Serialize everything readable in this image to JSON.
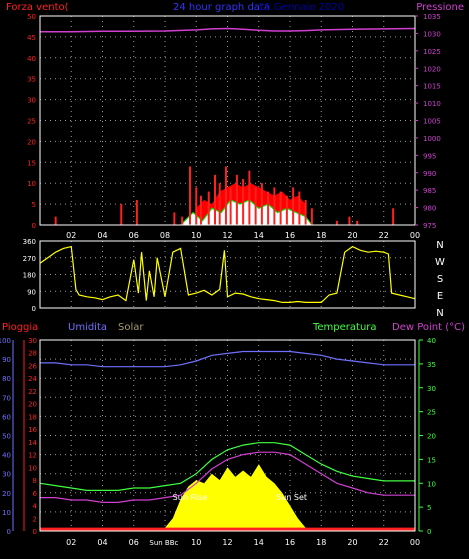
{
  "colors": {
    "background": "#000000",
    "frame": "#ffffff",
    "grid": "#9a9a9a",
    "wind": "#ff2020",
    "gust_area": "#ff0000",
    "wind_avg": "#00dd00",
    "wind_fill": "#ffffff",
    "pressure": "#d040d0",
    "direction": "#ffff00",
    "rain": "#ff2020",
    "humidity": "#7070ff",
    "solar": "#ffff00",
    "temperature": "#40ff40",
    "dewpoint": "#d040d0",
    "title": "#3333ff",
    "date": "#0000aa"
  },
  "header": {
    "left_label": "Forza vento(",
    "center_label": "24 hour graph data",
    "date_label": "15 Gennaio 2020",
    "right_label": "Pressione"
  },
  "mid_labels": {
    "rain": "Pioggia",
    "humidity": "Umidita",
    "solar": "Solar",
    "temperature": "Temperatura",
    "dewpoint": "Dew Point (°C)"
  },
  "compass_labels": [
    "N",
    "W",
    "S",
    "E",
    "N"
  ],
  "annotations": {
    "sun_rise": "Sun Rise",
    "sun_set": "Sun Set",
    "sun_bottom": "Sun BBc"
  },
  "x_ticks": [
    "02",
    "04",
    "06",
    "08",
    "10",
    "12",
    "14",
    "16",
    "18",
    "20",
    "22",
    "00"
  ],
  "chart_data": [
    {
      "id": "wind_pressure",
      "type": "line",
      "x_unit": "hour",
      "xlim": [
        0,
        24
      ],
      "left_axis": {
        "label": "Forza vento(",
        "range": [
          0,
          50
        ],
        "ticks": [
          0,
          5,
          10,
          15,
          20,
          25,
          30,
          35,
          40,
          45,
          50
        ]
      },
      "right_axis": {
        "label": "Pressione",
        "range": [
          975,
          1035
        ],
        "ticks": [
          975,
          980,
          985,
          990,
          995,
          1000,
          1005,
          1010,
          1015,
          1020,
          1025,
          1030,
          1035
        ]
      },
      "series": [
        {
          "name": "Pressione",
          "axis": "right",
          "x": [
            0,
            2,
            4,
            6,
            8,
            10,
            11,
            12,
            13,
            14,
            15,
            16,
            17,
            18,
            20,
            22,
            24
          ],
          "y": [
            1030.5,
            1030.5,
            1030.6,
            1030.6,
            1030.7,
            1031.0,
            1031.3,
            1031.4,
            1031.2,
            1030.9,
            1030.7,
            1030.7,
            1030.8,
            1031.0,
            1031.2,
            1031.3,
            1031.4
          ]
        },
        {
          "name": "Forza vento(",
          "axis": "left",
          "style": "spikes",
          "x": [
            1,
            5.2,
            6.2,
            8.6,
            9.1,
            9.6,
            10.0,
            10.3,
            10.8,
            11.2,
            11.5,
            11.9,
            12.2,
            12.6,
            13.0,
            13.4,
            13.8,
            14.2,
            14.6,
            15.0,
            15.4,
            15.8,
            16.2,
            16.6,
            17.0,
            17.4,
            19.0,
            19.8,
            20.3,
            22.6
          ],
          "y": [
            2,
            5,
            6,
            3,
            2,
            14,
            9,
            7,
            8,
            12,
            10,
            14,
            9,
            12,
            11,
            13,
            9,
            10,
            8,
            9,
            8,
            7,
            9,
            8,
            6,
            4,
            1,
            2,
            1,
            4
          ]
        },
        {
          "name": "gust",
          "axis": "left",
          "style": "area",
          "x": [
            10.0,
            10.5,
            11.0,
            11.5,
            12.0,
            12.5,
            13.0,
            13.5,
            14.0,
            14.5,
            15.0,
            15.5,
            16.0,
            16.5,
            17.0
          ],
          "y": [
            4,
            6,
            5,
            8,
            9,
            10,
            9,
            10,
            9,
            8,
            7,
            8,
            6,
            7,
            5
          ]
        },
        {
          "name": "average",
          "axis": "left",
          "x": [
            9.0,
            9.8,
            10.4,
            11.0,
            11.6,
            12.2,
            12.8,
            13.4,
            14.0,
            14.6,
            15.2,
            15.8,
            16.4,
            17.0,
            17.4
          ],
          "y": [
            0,
            3,
            1,
            4,
            3,
            6,
            5,
            6,
            4,
            5,
            3,
            4,
            3,
            2,
            0
          ]
        }
      ]
    },
    {
      "id": "wind_direction",
      "type": "scatter",
      "x_unit": "hour",
      "xlim": [
        0,
        24
      ],
      "ylim": [
        0,
        360
      ],
      "y_ticks": [
        0,
        90,
        180,
        270,
        360
      ],
      "series": [
        {
          "name": "direction",
          "x": [
            0.0,
            0.5,
            1.0,
            1.5,
            2.0,
            2.3,
            2.5,
            3.0,
            3.5,
            4.0,
            4.5,
            5.0,
            5.5,
            6.0,
            6.3,
            6.5,
            6.8,
            7.0,
            7.3,
            7.5,
            8.0,
            8.5,
            9.0,
            9.5,
            10.0,
            10.5,
            11.0,
            11.5,
            11.8,
            12.0,
            12.5,
            13.0,
            13.5,
            14.0,
            14.5,
            15.0,
            15.5,
            16.0,
            16.5,
            17.0,
            17.5,
            18.0,
            18.5,
            19.0,
            19.5,
            20.0,
            20.5,
            21.0,
            21.5,
            22.0,
            22.3,
            22.5,
            23.0,
            23.5,
            24.0
          ],
          "y": [
            240,
            270,
            300,
            320,
            330,
            100,
            70,
            60,
            55,
            45,
            60,
            70,
            40,
            260,
            80,
            300,
            40,
            200,
            60,
            270,
            60,
            300,
            320,
            70,
            80,
            95,
            70,
            100,
            310,
            60,
            80,
            75,
            60,
            50,
            45,
            40,
            30,
            30,
            35,
            30,
            30,
            30,
            70,
            80,
            300,
            330,
            310,
            300,
            305,
            300,
            290,
            80,
            70,
            60,
            50
          ]
        }
      ]
    },
    {
      "id": "rain_humidity_solar_temp",
      "type": "line",
      "x_unit": "hour",
      "xlim": [
        0,
        24
      ],
      "left_axis": {
        "label": "Pioggia",
        "range": [
          0,
          100
        ],
        "ticks": [
          0,
          10,
          20,
          30,
          40,
          50,
          60,
          70,
          80,
          90,
          100
        ]
      },
      "inner_left_axis": {
        "label": "Umidita",
        "range": [
          0,
          30
        ],
        "ticks": [
          0,
          2,
          4,
          6,
          8,
          10,
          12,
          14,
          16,
          18,
          20,
          22,
          24,
          26,
          28,
          30
        ]
      },
      "right_axis": {
        "label": "Temperatura",
        "range": [
          0,
          40
        ],
        "ticks": [
          0,
          5,
          10,
          15,
          20,
          25,
          30,
          35,
          40
        ]
      },
      "series": [
        {
          "name": "Umidita",
          "axis": "left",
          "x": [
            0,
            1,
            2,
            3,
            4,
            5,
            6,
            7,
            8,
            9,
            10,
            11,
            12,
            13,
            14,
            15,
            16,
            17,
            18,
            19,
            20,
            21,
            22,
            23,
            24
          ],
          "y": [
            88,
            88,
            87,
            87,
            86,
            86,
            86,
            86,
            86,
            87,
            89,
            92,
            93,
            94,
            94,
            94,
            94,
            93,
            92,
            90,
            89,
            88,
            87,
            87,
            87
          ]
        },
        {
          "name": "Temperatura",
          "axis": "right",
          "x": [
            0,
            1,
            2,
            3,
            4,
            5,
            6,
            7,
            8,
            9,
            10,
            11,
            12,
            13,
            14,
            15,
            16,
            17,
            18,
            19,
            20,
            21,
            22,
            23,
            24
          ],
          "y": [
            10,
            9.5,
            9,
            8.5,
            8.5,
            8.5,
            9,
            9,
            9.5,
            10,
            12,
            15,
            17,
            18,
            18.5,
            18.5,
            18,
            16,
            14,
            12.5,
            11.5,
            11,
            10.5,
            10.5,
            10.5
          ]
        },
        {
          "name": "Dew Point (°C)",
          "axis": "right",
          "x": [
            0,
            1,
            2,
            3,
            4,
            5,
            6,
            7,
            8,
            9,
            10,
            11,
            12,
            13,
            14,
            15,
            16,
            17,
            18,
            19,
            20,
            21,
            22,
            23,
            24
          ],
          "y": [
            7,
            7,
            6.5,
            6.5,
            6,
            6,
            6.5,
            6.5,
            7,
            7.5,
            10,
            13,
            15,
            16,
            16.5,
            16.5,
            16,
            14,
            12,
            10,
            9,
            8,
            7.5,
            7.5,
            7.5
          ]
        },
        {
          "name": "Pioggia",
          "axis": "left",
          "x": [
            0,
            24
          ],
          "y": [
            1,
            1
          ]
        },
        {
          "name": "Solar",
          "axis": "inner_left",
          "style": "area",
          "x": [
            7.6,
            8.0,
            8.5,
            9.0,
            9.5,
            10.0,
            10.5,
            11.0,
            11.5,
            12.0,
            12.5,
            13.0,
            13.5,
            14.0,
            14.5,
            15.0,
            15.5,
            16.0,
            16.5,
            17.0
          ],
          "y": [
            0.2,
            0.5,
            2,
            5,
            7,
            8,
            7.5,
            9,
            8,
            10,
            8.5,
            9.5,
            8.5,
            10.5,
            8.5,
            7.5,
            6,
            4,
            2,
            0.5
          ]
        }
      ]
    }
  ]
}
